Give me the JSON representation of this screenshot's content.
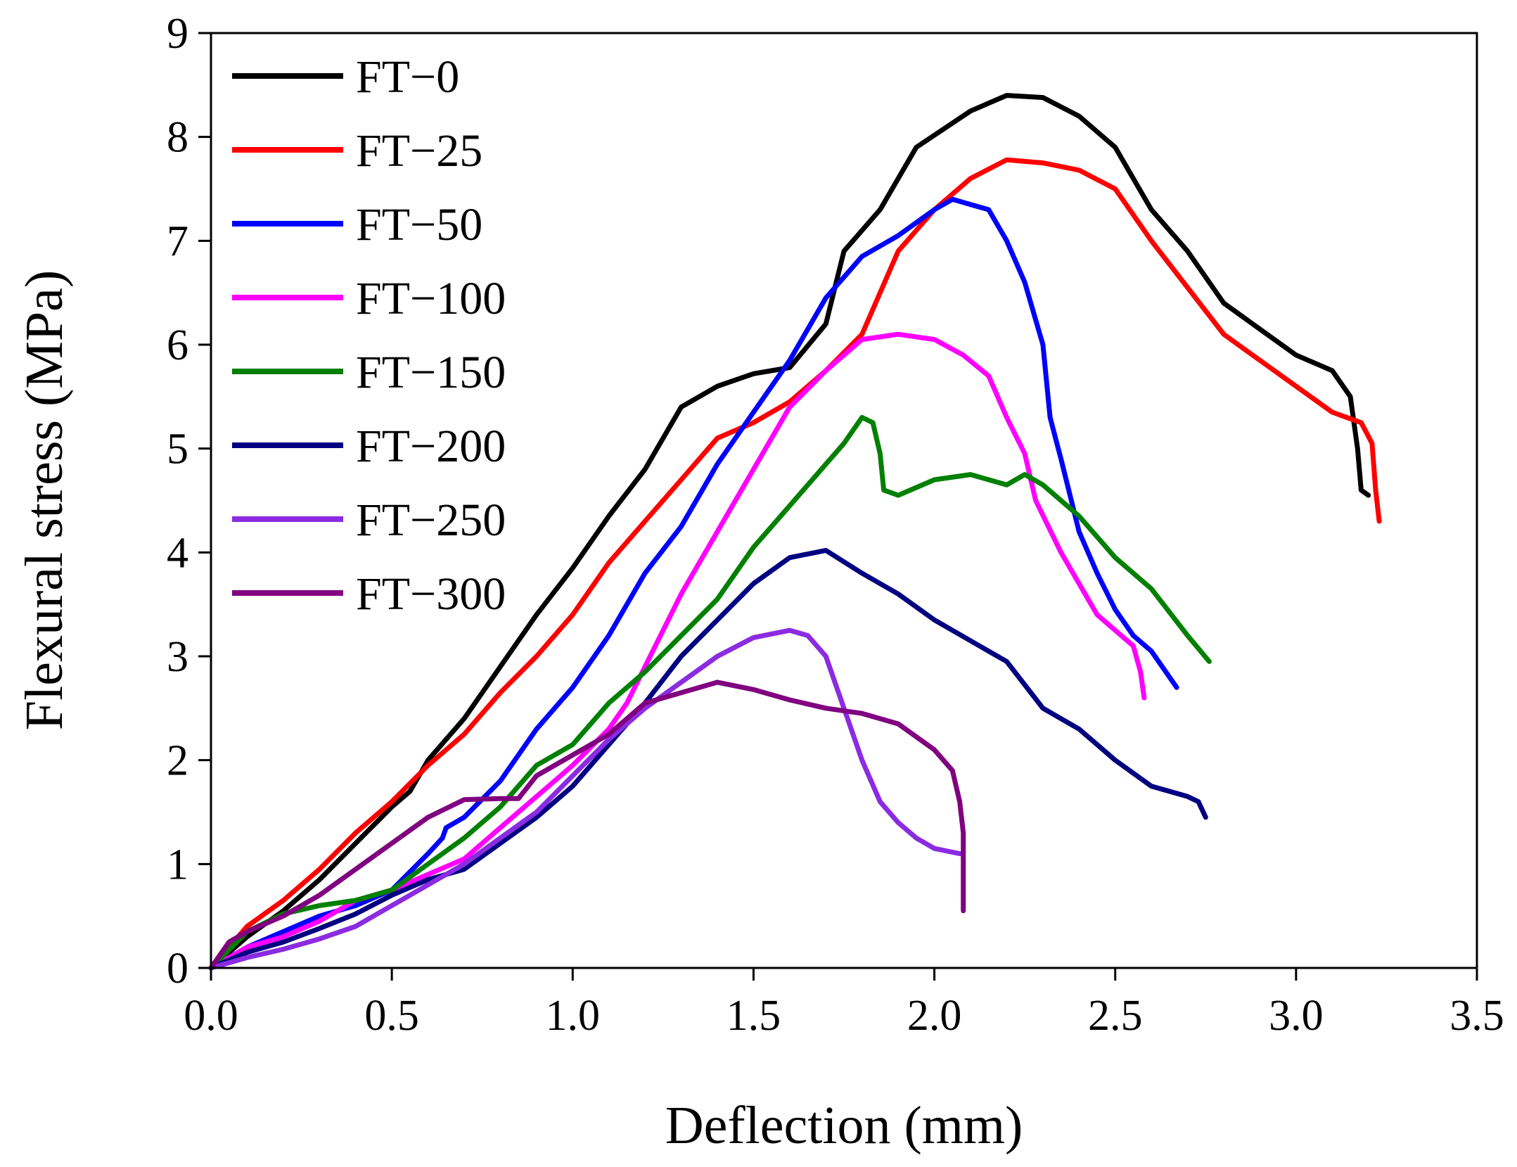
{
  "chart_data": {
    "type": "line",
    "title": "",
    "xlabel": "Deflection (mm)",
    "ylabel": "Flexural stress (MPa)",
    "xlim": [
      0.0,
      3.5
    ],
    "ylim": [
      0,
      9
    ],
    "xticks": [
      "0.0",
      "0.5",
      "1.0",
      "1.5",
      "2.0",
      "2.5",
      "3.0",
      "3.5"
    ],
    "yticks": [
      "0",
      "1",
      "2",
      "3",
      "4",
      "5",
      "6",
      "7",
      "8",
      "9"
    ],
    "grid": false,
    "legend_position": "top-left",
    "series": [
      {
        "name": "FT−0",
        "color": "#000000",
        "points": [
          [
            0,
            0
          ],
          [
            0.05,
            0.15
          ],
          [
            0.1,
            0.3
          ],
          [
            0.2,
            0.55
          ],
          [
            0.3,
            0.85
          ],
          [
            0.4,
            1.2
          ],
          [
            0.5,
            1.55
          ],
          [
            0.55,
            1.7
          ],
          [
            0.6,
            2.0
          ],
          [
            0.65,
            2.2
          ],
          [
            0.7,
            2.4
          ],
          [
            0.8,
            2.9
          ],
          [
            0.9,
            3.4
          ],
          [
            1.0,
            3.85
          ],
          [
            1.1,
            4.35
          ],
          [
            1.2,
            4.8
          ],
          [
            1.3,
            5.4
          ],
          [
            1.4,
            5.6
          ],
          [
            1.5,
            5.72
          ],
          [
            1.6,
            5.78
          ],
          [
            1.7,
            6.2
          ],
          [
            1.75,
            6.9
          ],
          [
            1.85,
            7.3
          ],
          [
            1.95,
            7.9
          ],
          [
            2.1,
            8.25
          ],
          [
            2.2,
            8.4
          ],
          [
            2.3,
            8.38
          ],
          [
            2.4,
            8.2
          ],
          [
            2.5,
            7.9
          ],
          [
            2.6,
            7.3
          ],
          [
            2.7,
            6.9
          ],
          [
            2.8,
            6.4
          ],
          [
            2.9,
            6.15
          ],
          [
            3.0,
            5.9
          ],
          [
            3.1,
            5.75
          ],
          [
            3.15,
            5.5
          ],
          [
            3.17,
            5.0
          ],
          [
            3.18,
            4.6
          ],
          [
            3.2,
            4.55
          ]
        ]
      },
      {
        "name": "FT−25",
        "color": "#ff0000",
        "points": [
          [
            0,
            0
          ],
          [
            0.05,
            0.2
          ],
          [
            0.1,
            0.4
          ],
          [
            0.2,
            0.65
          ],
          [
            0.3,
            0.95
          ],
          [
            0.4,
            1.3
          ],
          [
            0.5,
            1.6
          ],
          [
            0.6,
            1.95
          ],
          [
            0.7,
            2.25
          ],
          [
            0.8,
            2.65
          ],
          [
            0.9,
            3.0
          ],
          [
            1.0,
            3.4
          ],
          [
            1.1,
            3.9
          ],
          [
            1.2,
            4.3
          ],
          [
            1.3,
            4.7
          ],
          [
            1.4,
            5.1
          ],
          [
            1.5,
            5.25
          ],
          [
            1.6,
            5.45
          ],
          [
            1.7,
            5.75
          ],
          [
            1.8,
            6.1
          ],
          [
            1.9,
            6.9
          ],
          [
            2.0,
            7.3
          ],
          [
            2.1,
            7.6
          ],
          [
            2.2,
            7.78
          ],
          [
            2.3,
            7.75
          ],
          [
            2.4,
            7.68
          ],
          [
            2.5,
            7.5
          ],
          [
            2.6,
            7.0
          ],
          [
            2.7,
            6.55
          ],
          [
            2.8,
            6.1
          ],
          [
            2.9,
            5.85
          ],
          [
            3.0,
            5.6
          ],
          [
            3.1,
            5.35
          ],
          [
            3.18,
            5.25
          ],
          [
            3.21,
            5.05
          ],
          [
            3.22,
            4.6
          ],
          [
            3.23,
            4.3
          ]
        ]
      },
      {
        "name": "FT−50",
        "color": "#0000ff",
        "points": [
          [
            0,
            0
          ],
          [
            0.1,
            0.2
          ],
          [
            0.2,
            0.35
          ],
          [
            0.3,
            0.5
          ],
          [
            0.4,
            0.6
          ],
          [
            0.5,
            0.75
          ],
          [
            0.6,
            1.1
          ],
          [
            0.64,
            1.25
          ],
          [
            0.65,
            1.35
          ],
          [
            0.7,
            1.45
          ],
          [
            0.8,
            1.8
          ],
          [
            0.9,
            2.3
          ],
          [
            1.0,
            2.7
          ],
          [
            1.1,
            3.2
          ],
          [
            1.2,
            3.8
          ],
          [
            1.3,
            4.25
          ],
          [
            1.4,
            4.85
          ],
          [
            1.5,
            5.35
          ],
          [
            1.6,
            5.85
          ],
          [
            1.7,
            6.45
          ],
          [
            1.8,
            6.85
          ],
          [
            1.9,
            7.05
          ],
          [
            2.0,
            7.3
          ],
          [
            2.05,
            7.4
          ],
          [
            2.1,
            7.35
          ],
          [
            2.15,
            7.3
          ],
          [
            2.2,
            7.0
          ],
          [
            2.25,
            6.6
          ],
          [
            2.3,
            6.0
          ],
          [
            2.32,
            5.3
          ],
          [
            2.35,
            4.9
          ],
          [
            2.4,
            4.2
          ],
          [
            2.45,
            3.8
          ],
          [
            2.5,
            3.45
          ],
          [
            2.55,
            3.2
          ],
          [
            2.6,
            3.05
          ],
          [
            2.67,
            2.7
          ]
        ]
      },
      {
        "name": "FT−100",
        "color": "#ff00ff",
        "points": [
          [
            0,
            0
          ],
          [
            0.1,
            0.2
          ],
          [
            0.2,
            0.3
          ],
          [
            0.3,
            0.45
          ],
          [
            0.4,
            0.65
          ],
          [
            0.5,
            0.75
          ],
          [
            0.6,
            0.9
          ],
          [
            0.7,
            1.05
          ],
          [
            0.8,
            1.35
          ],
          [
            0.9,
            1.65
          ],
          [
            1.0,
            1.95
          ],
          [
            1.1,
            2.3
          ],
          [
            1.15,
            2.55
          ],
          [
            1.2,
            2.9
          ],
          [
            1.3,
            3.6
          ],
          [
            1.4,
            4.2
          ],
          [
            1.5,
            4.8
          ],
          [
            1.6,
            5.4
          ],
          [
            1.7,
            5.75
          ],
          [
            1.8,
            6.05
          ],
          [
            1.9,
            6.1
          ],
          [
            2.0,
            6.05
          ],
          [
            2.08,
            5.9
          ],
          [
            2.15,
            5.7
          ],
          [
            2.2,
            5.3
          ],
          [
            2.25,
            4.95
          ],
          [
            2.28,
            4.5
          ],
          [
            2.35,
            4.0
          ],
          [
            2.4,
            3.7
          ],
          [
            2.45,
            3.4
          ],
          [
            2.55,
            3.1
          ],
          [
            2.57,
            2.85
          ],
          [
            2.58,
            2.6
          ]
        ]
      },
      {
        "name": "FT−150",
        "color": "#008000",
        "points": [
          [
            0,
            0
          ],
          [
            0.1,
            0.35
          ],
          [
            0.2,
            0.52
          ],
          [
            0.3,
            0.6
          ],
          [
            0.4,
            0.65
          ],
          [
            0.5,
            0.75
          ],
          [
            0.6,
            1.0
          ],
          [
            0.7,
            1.25
          ],
          [
            0.8,
            1.55
          ],
          [
            0.9,
            1.95
          ],
          [
            1.0,
            2.15
          ],
          [
            1.1,
            2.55
          ],
          [
            1.2,
            2.85
          ],
          [
            1.3,
            3.2
          ],
          [
            1.4,
            3.55
          ],
          [
            1.5,
            4.05
          ],
          [
            1.6,
            4.45
          ],
          [
            1.7,
            4.85
          ],
          [
            1.75,
            5.05
          ],
          [
            1.8,
            5.3
          ],
          [
            1.83,
            5.25
          ],
          [
            1.85,
            4.95
          ],
          [
            1.86,
            4.6
          ],
          [
            1.9,
            4.55
          ],
          [
            2.0,
            4.7
          ],
          [
            2.1,
            4.75
          ],
          [
            2.2,
            4.65
          ],
          [
            2.25,
            4.75
          ],
          [
            2.3,
            4.65
          ],
          [
            2.4,
            4.35
          ],
          [
            2.5,
            3.95
          ],
          [
            2.6,
            3.65
          ],
          [
            2.7,
            3.2
          ],
          [
            2.76,
            2.95
          ]
        ]
      },
      {
        "name": "FT−200",
        "color": "#000080",
        "points": [
          [
            0,
            0
          ],
          [
            0.1,
            0.15
          ],
          [
            0.2,
            0.25
          ],
          [
            0.3,
            0.38
          ],
          [
            0.4,
            0.52
          ],
          [
            0.5,
            0.7
          ],
          [
            0.6,
            0.85
          ],
          [
            0.7,
            0.95
          ],
          [
            0.8,
            1.2
          ],
          [
            0.9,
            1.45
          ],
          [
            1.0,
            1.75
          ],
          [
            1.1,
            2.15
          ],
          [
            1.2,
            2.55
          ],
          [
            1.3,
            3.0
          ],
          [
            1.4,
            3.35
          ],
          [
            1.5,
            3.7
          ],
          [
            1.6,
            3.95
          ],
          [
            1.7,
            4.02
          ],
          [
            1.8,
            3.8
          ],
          [
            1.9,
            3.6
          ],
          [
            2.0,
            3.35
          ],
          [
            2.1,
            3.15
          ],
          [
            2.2,
            2.95
          ],
          [
            2.3,
            2.5
          ],
          [
            2.4,
            2.3
          ],
          [
            2.5,
            2.0
          ],
          [
            2.6,
            1.75
          ],
          [
            2.7,
            1.65
          ],
          [
            2.73,
            1.6
          ],
          [
            2.75,
            1.45
          ]
        ]
      },
      {
        "name": "FT−250",
        "color": "#8b2be2",
        "points": [
          [
            0,
            0
          ],
          [
            0.1,
            0.1
          ],
          [
            0.2,
            0.18
          ],
          [
            0.3,
            0.28
          ],
          [
            0.4,
            0.4
          ],
          [
            0.5,
            0.6
          ],
          [
            0.6,
            0.8
          ],
          [
            0.7,
            1.0
          ],
          [
            0.8,
            1.25
          ],
          [
            0.9,
            1.5
          ],
          [
            1.0,
            1.85
          ],
          [
            1.1,
            2.2
          ],
          [
            1.2,
            2.5
          ],
          [
            1.3,
            2.75
          ],
          [
            1.4,
            3.0
          ],
          [
            1.5,
            3.18
          ],
          [
            1.6,
            3.25
          ],
          [
            1.65,
            3.2
          ],
          [
            1.7,
            3.0
          ],
          [
            1.75,
            2.5
          ],
          [
            1.8,
            2.0
          ],
          [
            1.85,
            1.6
          ],
          [
            1.9,
            1.4
          ],
          [
            1.95,
            1.25
          ],
          [
            2.0,
            1.15
          ],
          [
            2.07,
            1.1
          ]
        ]
      },
      {
        "name": "FT−300",
        "color": "#800080",
        "points": [
          [
            0,
            0
          ],
          [
            0.05,
            0.25
          ],
          [
            0.1,
            0.35
          ],
          [
            0.2,
            0.5
          ],
          [
            0.3,
            0.7
          ],
          [
            0.4,
            0.95
          ],
          [
            0.5,
            1.2
          ],
          [
            0.6,
            1.45
          ],
          [
            0.7,
            1.62
          ],
          [
            0.8,
            1.63
          ],
          [
            0.85,
            1.63
          ],
          [
            0.9,
            1.85
          ],
          [
            1.0,
            2.05
          ],
          [
            1.1,
            2.25
          ],
          [
            1.2,
            2.55
          ],
          [
            1.3,
            2.65
          ],
          [
            1.4,
            2.75
          ],
          [
            1.5,
            2.68
          ],
          [
            1.6,
            2.58
          ],
          [
            1.7,
            2.5
          ],
          [
            1.8,
            2.45
          ],
          [
            1.9,
            2.35
          ],
          [
            2.0,
            2.1
          ],
          [
            2.05,
            1.9
          ],
          [
            2.07,
            1.6
          ],
          [
            2.08,
            1.3
          ],
          [
            2.08,
            1.0
          ],
          [
            2.08,
            0.55
          ]
        ]
      }
    ]
  }
}
